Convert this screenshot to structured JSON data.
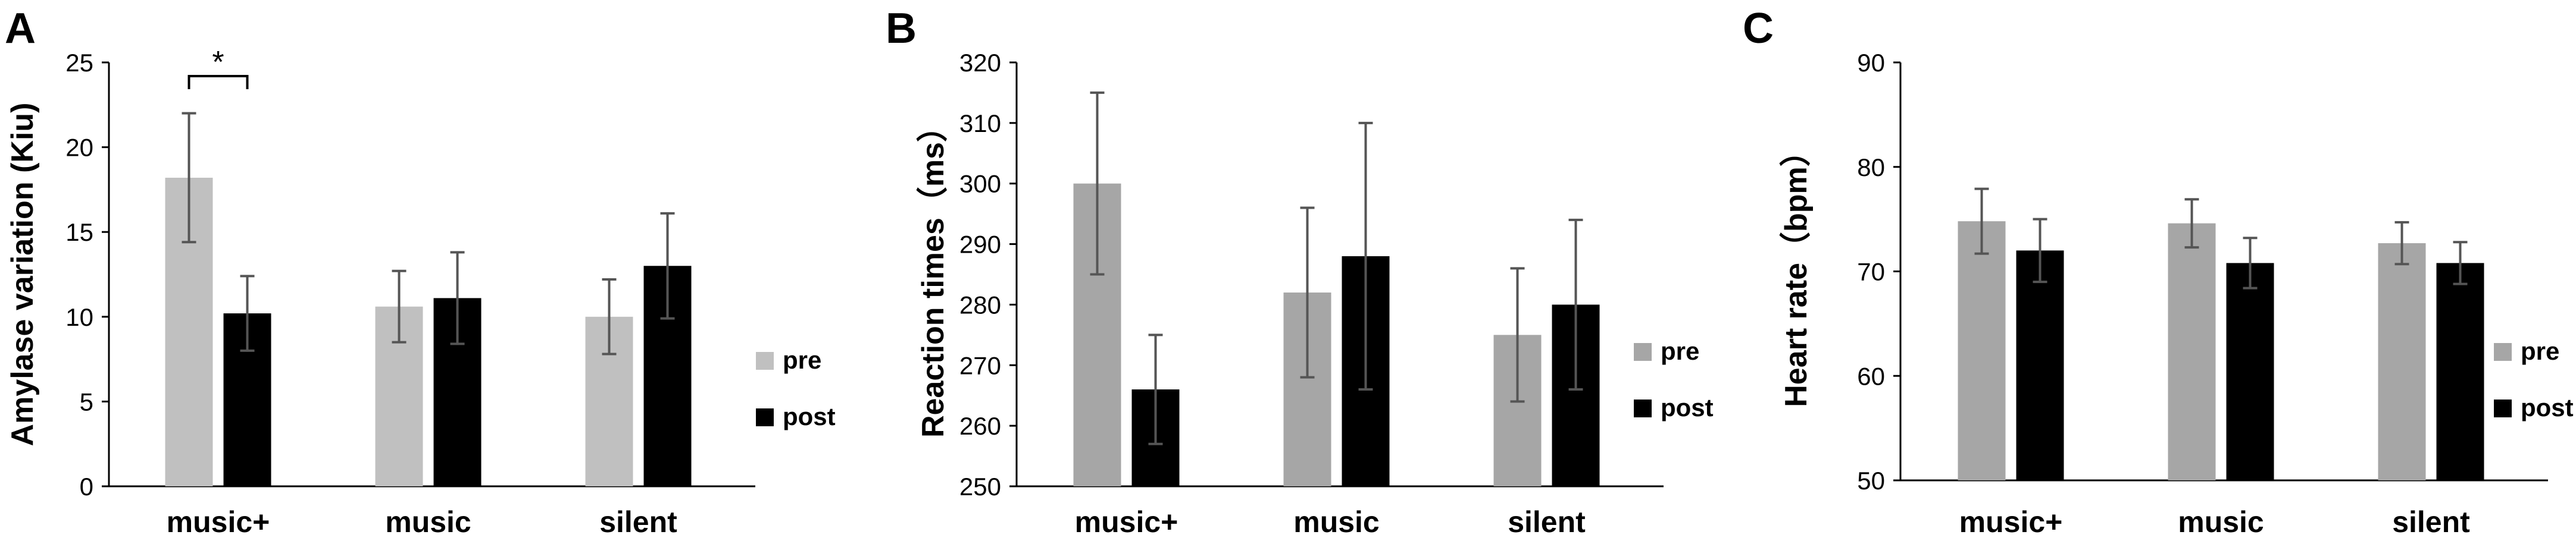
{
  "colors": {
    "pre_A": "#c0c0c0",
    "pre_BC": "#a6a6a6",
    "post": "#000000",
    "error_bar": "#555555"
  },
  "chart_data": [
    {
      "type": "bar",
      "panel": "A",
      "ylabel": "Amylase variation (Kiu)",
      "categories": [
        "music+",
        "music",
        "silent"
      ],
      "ylim": [
        0,
        25
      ],
      "yticks": [
        "0",
        "5",
        "10",
        "15",
        "20",
        "25"
      ],
      "ytick_values": [
        0,
        5,
        10,
        15,
        20,
        25
      ],
      "series": [
        {
          "name": "pre",
          "values": [
            18.2,
            10.6,
            10.0
          ],
          "errors": [
            3.8,
            2.1,
            2.2
          ]
        },
        {
          "name": "post",
          "values": [
            10.2,
            11.1,
            13.0
          ],
          "errors": [
            2.2,
            2.7,
            3.1
          ]
        }
      ],
      "annotation": {
        "text": "*",
        "between": "music+"
      },
      "legend_placement": "right",
      "grid": false
    },
    {
      "type": "bar",
      "panel": "B",
      "ylabel": "Reaction times（ms）",
      "categories": [
        "music+",
        "music",
        "silent"
      ],
      "ylim": [
        250,
        320
      ],
      "yticks": [
        "250",
        "260",
        "270",
        "280",
        "290",
        "300",
        "310",
        "320"
      ],
      "ytick_values": [
        250,
        260,
        270,
        280,
        290,
        300,
        310,
        320
      ],
      "series": [
        {
          "name": "pre",
          "values": [
            300,
            282,
            275
          ],
          "errors": [
            15,
            14,
            11
          ]
        },
        {
          "name": "post",
          "values": [
            266,
            288,
            280
          ],
          "errors": [
            9,
            22,
            14
          ]
        }
      ],
      "legend_placement": "right",
      "grid": false
    },
    {
      "type": "bar",
      "panel": "C",
      "ylabel": "Heart rate（bpm）",
      "categories": [
        "music+",
        "music",
        "silent"
      ],
      "ylim": [
        50,
        90
      ],
      "yticks": [
        "50",
        "60",
        "70",
        "80",
        "90"
      ],
      "ytick_values": [
        50,
        60,
        70,
        80,
        90
      ],
      "series": [
        {
          "name": "pre",
          "values": [
            74.8,
            74.6,
            72.7
          ],
          "errors": [
            3.1,
            2.3,
            2.0
          ]
        },
        {
          "name": "post",
          "values": [
            72.0,
            70.8,
            70.8
          ],
          "errors": [
            3.0,
            2.4,
            2.0
          ]
        }
      ],
      "legend_placement": "right",
      "grid": false
    }
  ]
}
